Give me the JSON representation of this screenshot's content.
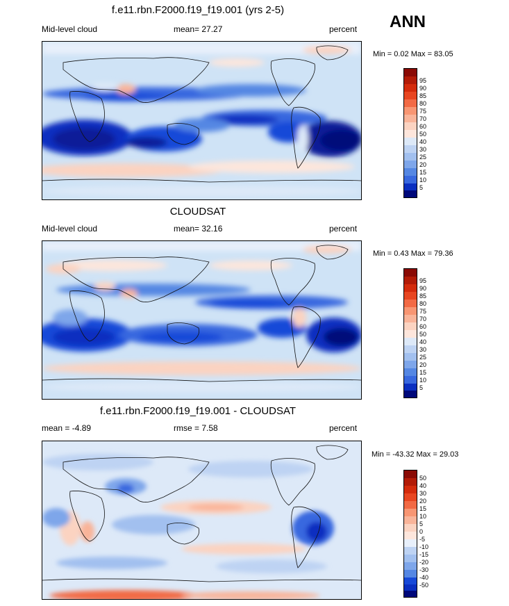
{
  "season": "ANN",
  "colors": {
    "positive": [
      "#fbd3c1",
      "#f9b499",
      "#f89673",
      "#f26a45",
      "#e84621",
      "#d42b0c",
      "#b21b07",
      "#8a0a05"
    ],
    "negative": [
      "#dde9f8",
      "#bed3f3",
      "#a2c0ef",
      "#7ea6ea",
      "#5587e3",
      "#3868df",
      "#1749d8",
      "#0a2fc0",
      "#071d98",
      "#00087a"
    ],
    "neutral_light_pos": "#fde6dc",
    "neutral_light_neg": "#e8f0fb",
    "coast": "#111111"
  },
  "panels": [
    {
      "title": "f.e11.rbn.F2000.f19_f19.001 (yrs 2-5)",
      "left_label": "Mid-level cloud",
      "center_label": "mean=  27.27",
      "right_label": "percent",
      "minmax": "Min =   0.02 Max =  83.05",
      "colorbar_ticks": [
        "95",
        "90",
        "85",
        "80",
        "75",
        "70",
        "60",
        "50",
        "40",
        "30",
        "25",
        "20",
        "15",
        "10",
        "5"
      ]
    },
    {
      "title": "CLOUDSAT",
      "left_label": "Mid-level cloud",
      "center_label": "mean=  32.16",
      "right_label": "percent",
      "minmax": "Min =   0.43 Max =  79.36",
      "colorbar_ticks": [
        "95",
        "90",
        "85",
        "80",
        "75",
        "70",
        "60",
        "50",
        "40",
        "30",
        "25",
        "20",
        "15",
        "10",
        "5"
      ]
    },
    {
      "title": "f.e11.rbn.F2000.f19_f19.001 - CLOUDSAT",
      "left_label": "mean =  -4.89",
      "center_label": "rmse =    7.58",
      "right_label": "percent",
      "minmax": "Min = -43.32 Max =  29.03",
      "colorbar_ticks": [
        "50",
        "40",
        "30",
        "20",
        "15",
        "10",
        "5",
        "0",
        "-5",
        "-10",
        "-15",
        "-20",
        "-30",
        "-40",
        "-50"
      ]
    }
  ]
}
